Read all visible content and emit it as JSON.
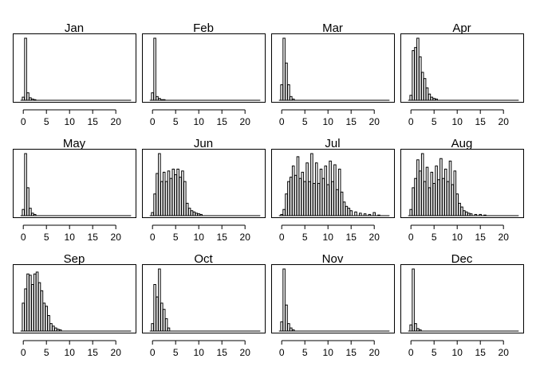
{
  "chart_data": {
    "type": "bar",
    "layout": "3x4 small multiples",
    "shared_x_ticks": [
      0,
      5,
      10,
      15,
      20
    ],
    "xlim": [
      -1.5,
      23.5
    ],
    "y_axis_shown": false,
    "bar_color": "#ffffff",
    "bar_outline": "#000000",
    "panels": [
      {
        "title": "Jan",
        "x": [
          0,
          0.5,
          1,
          1.5,
          2,
          2.5
        ],
        "values": [
          0.05,
          1.0,
          0.12,
          0.04,
          0.02,
          0.01
        ]
      },
      {
        "title": "Feb",
        "x": [
          0,
          0.5,
          1,
          1.5,
          2,
          2.5
        ],
        "values": [
          0.12,
          1.0,
          0.06,
          0.03,
          0.01,
          0.01
        ]
      },
      {
        "title": "Mar",
        "x": [
          0,
          0.5,
          1,
          1.5,
          2,
          2.5
        ],
        "values": [
          0.25,
          1.0,
          0.6,
          0.25,
          0.06,
          0.02
        ]
      },
      {
        "title": "Apr",
        "x": [
          0,
          0.5,
          1,
          1.5,
          2,
          2.5,
          3,
          3.5,
          4,
          4.5,
          5,
          5.5
        ],
        "values": [
          0.08,
          0.8,
          0.85,
          1.0,
          0.7,
          0.45,
          0.35,
          0.2,
          0.1,
          0.05,
          0.03,
          0.02
        ]
      },
      {
        "title": "May",
        "x": [
          0,
          0.5,
          1,
          1.5,
          2,
          2.5
        ],
        "values": [
          0.1,
          1.0,
          0.45,
          0.12,
          0.04,
          0.02
        ]
      },
      {
        "title": "Jun",
        "x": [
          0,
          0.5,
          1,
          1.5,
          2,
          2.5,
          3,
          3.5,
          4,
          4.5,
          5,
          5.5,
          6,
          6.5,
          7,
          7.5,
          8,
          8.5,
          9,
          9.5,
          10,
          10.5
        ],
        "values": [
          0.05,
          0.35,
          0.68,
          1.0,
          0.55,
          0.7,
          0.55,
          0.72,
          0.6,
          0.75,
          0.66,
          0.75,
          0.62,
          0.72,
          0.55,
          0.2,
          0.12,
          0.08,
          0.06,
          0.04,
          0.03,
          0.02
        ]
      },
      {
        "title": "Jul",
        "x": [
          0,
          0.5,
          1,
          1.5,
          2,
          2.5,
          3,
          3.5,
          4,
          4.5,
          5,
          5.5,
          6,
          6.5,
          7,
          7.5,
          8,
          8.5,
          9,
          9.5,
          10,
          10.5,
          11,
          11.5,
          12,
          12.5,
          13,
          13.5,
          14,
          14.5,
          15,
          16,
          17,
          18,
          19,
          20,
          21
        ],
        "values": [
          0.02,
          0.1,
          0.35,
          0.55,
          0.62,
          0.8,
          0.65,
          0.95,
          0.6,
          0.7,
          0.55,
          0.85,
          0.55,
          1.0,
          0.52,
          0.85,
          0.52,
          0.75,
          0.6,
          0.8,
          0.5,
          0.88,
          0.55,
          0.82,
          0.42,
          0.75,
          0.38,
          0.22,
          0.15,
          0.12,
          0.08,
          0.06,
          0.04,
          0.03,
          0.02,
          0.05,
          0.01
        ]
      },
      {
        "title": "Aug",
        "x": [
          0,
          0.5,
          1,
          1.5,
          2,
          2.5,
          3,
          3.5,
          4,
          4.5,
          5,
          5.5,
          6,
          6.5,
          7,
          7.5,
          8,
          8.5,
          9,
          9.5,
          10,
          10.5,
          11,
          11.5,
          12,
          12.5,
          13,
          14,
          15,
          16
        ],
        "values": [
          0.1,
          0.45,
          0.6,
          0.9,
          0.72,
          1.0,
          0.55,
          0.78,
          0.45,
          0.7,
          0.52,
          0.8,
          0.58,
          0.92,
          0.6,
          0.75,
          0.55,
          0.88,
          0.5,
          0.72,
          0.35,
          0.2,
          0.14,
          0.08,
          0.06,
          0.04,
          0.03,
          0.02,
          0.02,
          0.01
        ]
      },
      {
        "title": "Sep",
        "x": [
          0,
          0.5,
          1,
          1.5,
          2,
          2.5,
          3,
          3.5,
          4,
          4.5,
          5,
          5.5,
          6,
          6.5,
          7,
          7.5,
          8
        ],
        "values": [
          0.45,
          0.68,
          0.92,
          0.9,
          0.75,
          0.92,
          0.95,
          0.78,
          0.65,
          0.45,
          0.4,
          0.25,
          0.12,
          0.08,
          0.05,
          0.03,
          0.02
        ]
      },
      {
        "title": "Oct",
        "x": [
          0,
          0.5,
          1,
          1.5,
          2,
          2.5,
          3,
          3.5
        ],
        "values": [
          0.12,
          0.75,
          0.55,
          1.0,
          0.45,
          0.35,
          0.2,
          0.05
        ]
      },
      {
        "title": "Nov",
        "x": [
          0,
          0.5,
          1,
          1.5,
          2,
          2.5
        ],
        "values": [
          0.15,
          1.0,
          0.42,
          0.12,
          0.05,
          0.02
        ]
      },
      {
        "title": "Dec",
        "x": [
          0,
          0.5,
          1,
          1.5,
          2
        ],
        "values": [
          0.1,
          1.0,
          0.12,
          0.04,
          0.02
        ]
      }
    ]
  }
}
